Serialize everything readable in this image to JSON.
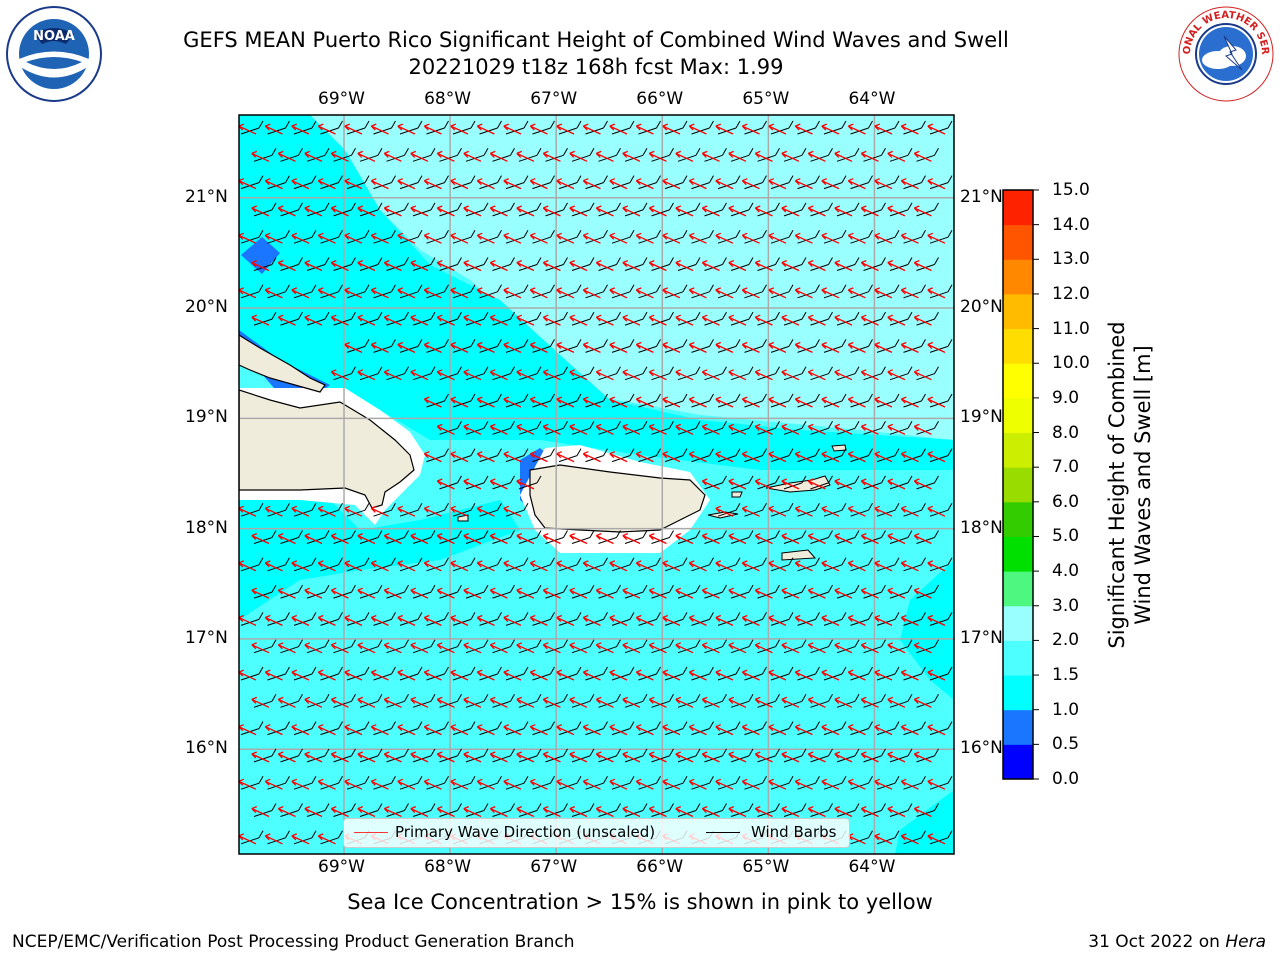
{
  "title": {
    "line1": "GEFS MEAN Puerto Rico Significant Height of Combined Wind Waves and Swell",
    "line2": "20221029 t18z 168h fcst   Max: 1.99"
  },
  "logos": {
    "left": {
      "text": "NOAA",
      "icon": "noaa-logo-icon"
    },
    "right": {
      "text": "NATIONAL WEATHER SERVICE",
      "icon": "nws-logo-icon"
    }
  },
  "map": {
    "lon_range": [
      -69.99,
      -63.25
    ],
    "lat_range": [
      15.05,
      21.75
    ],
    "lon_labels": [
      {
        "lon": -69,
        "label": "69°W"
      },
      {
        "lon": -68,
        "label": "68°W"
      },
      {
        "lon": -67,
        "label": "67°W"
      },
      {
        "lon": -66,
        "label": "66°W"
      },
      {
        "lon": -65,
        "label": "65°W"
      },
      {
        "lon": -64,
        "label": "64°W"
      }
    ],
    "lat_labels": [
      {
        "lat": 21,
        "label": "21°N"
      },
      {
        "lat": 20,
        "label": "20°N"
      },
      {
        "lat": 19,
        "label": "19°N"
      },
      {
        "lat": 18,
        "label": "18°N"
      },
      {
        "lat": 17,
        "label": "17°N"
      },
      {
        "lat": 16,
        "label": "16°N"
      }
    ],
    "primary_wave_direction_deg_to": 150,
    "wind_barbs_from": "east",
    "colors": {
      "sea_main": "#4dffff",
      "sea_light": "#99ffff",
      "sea_deep": "#00ffff",
      "sea_dark_blue": "#1a75ff",
      "land": "#f0ecdc",
      "wave_arrow": "#ff0000",
      "wind_barb": "#000000"
    }
  },
  "colorbar": {
    "title_line1": "Significant Height of Combined",
    "title_line2": "Wind Waves and Swell [m]",
    "levels": [
      "0.0",
      "0.5",
      "1.0",
      "1.5",
      "2.0",
      "3.0",
      "4.0",
      "5.0",
      "6.0",
      "7.0",
      "8.0",
      "9.0",
      "10.0",
      "11.0",
      "12.0",
      "13.0",
      "14.0",
      "15.0"
    ],
    "colors": [
      "#0000ff",
      "#1a75ff",
      "#00ffff",
      "#4dffff",
      "#99ffff",
      "#4df780",
      "#00e000",
      "#33cc00",
      "#99dd00",
      "#ccee00",
      "#eeff00",
      "#ffff00",
      "#ffdd00",
      "#ffbb00",
      "#ff8800",
      "#ff5500",
      "#ff2200"
    ]
  },
  "legend": {
    "wave_label": "Primary Wave Direction (unscaled)",
    "barb_label": "Wind Barbs"
  },
  "note": "Sea Ice Concentration > 15% is shown in pink to yellow",
  "footer": {
    "left": "NCEP/EMC/Verification Post Processing Product Generation Branch",
    "right_date": "31 Oct 2022 on ",
    "right_host": "Hera"
  }
}
